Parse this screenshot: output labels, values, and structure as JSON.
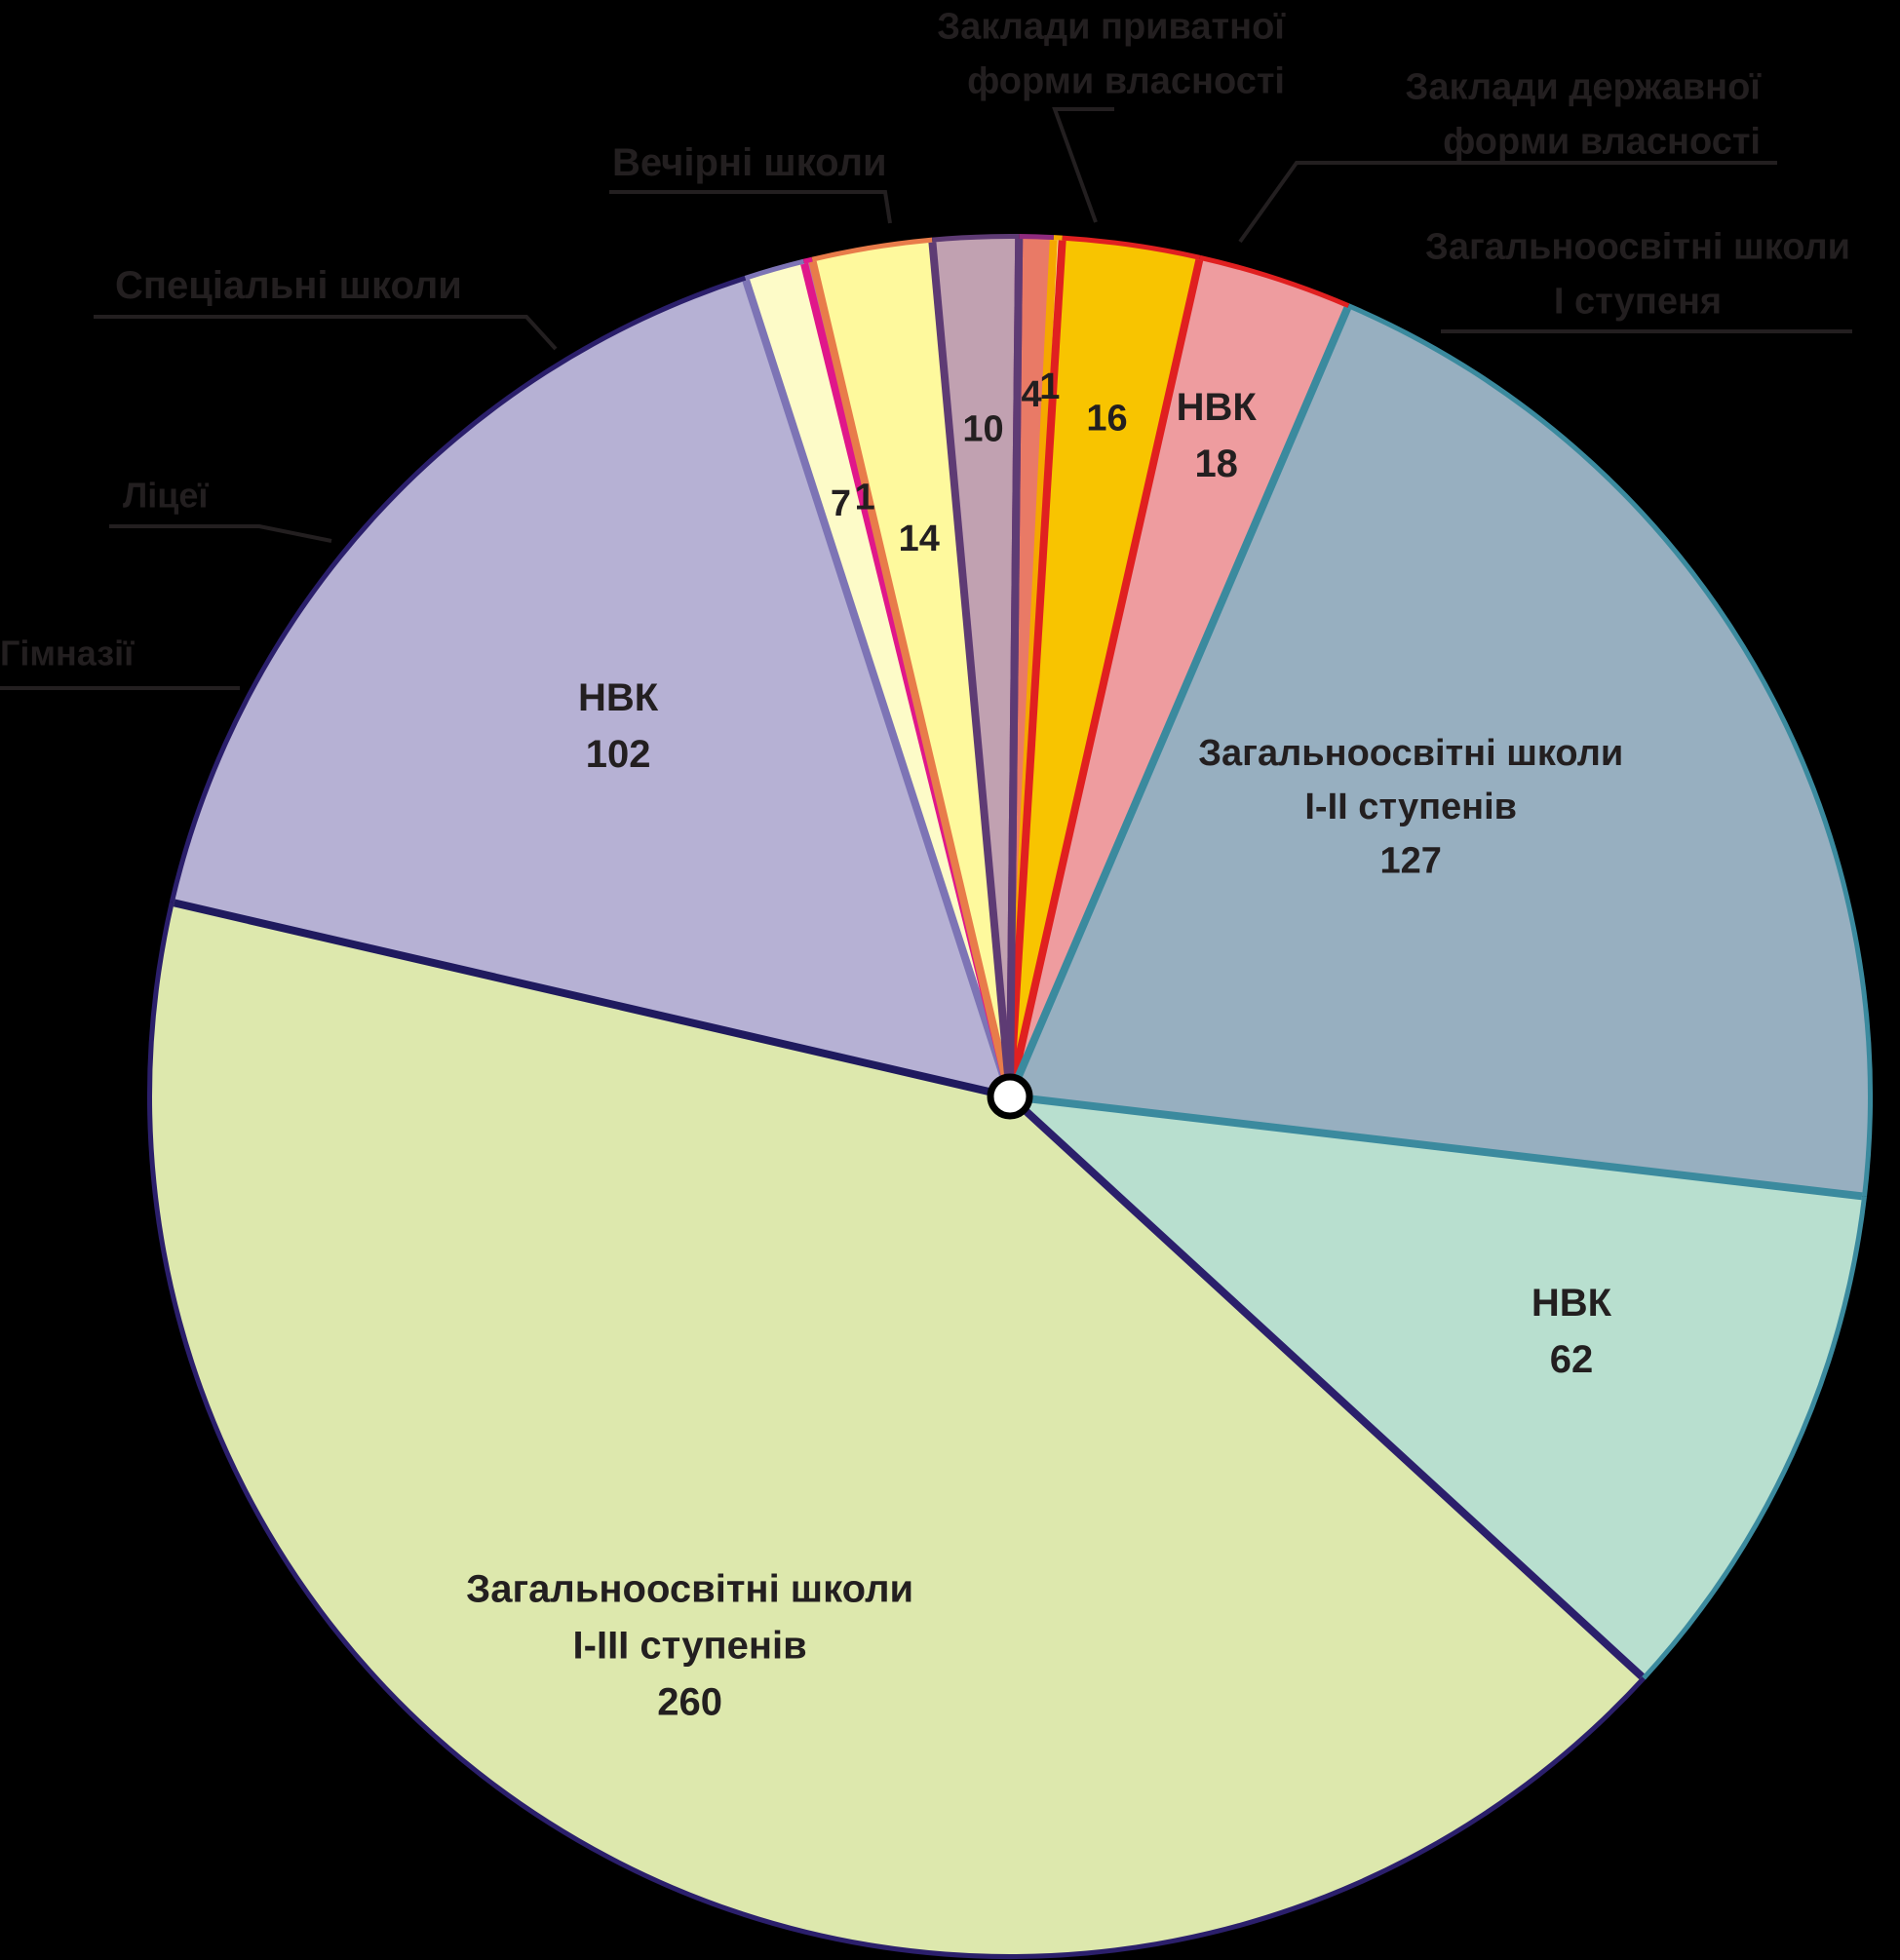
{
  "chart_data": {
    "type": "pie",
    "title": "",
    "slices": [
      {
        "label_lines": [
          "Загальноосвітні школи",
          "I-III ступенів"
        ],
        "value": 260,
        "color": "#dde8ad"
      },
      {
        "label_lines": [
          "НВК"
        ],
        "value": 102,
        "color": "#b6b1d4"
      },
      {
        "label_lines": [],
        "value": 7,
        "color": "#fdfbc8",
        "callout": "Гімназії"
      },
      {
        "label_lines": [],
        "value": 1,
        "color": "#b873a8",
        "callout": "Ліцеї"
      },
      {
        "label_lines": [],
        "value": 14,
        "color": "#fef99d",
        "callout": "Спеціальні школи"
      },
      {
        "label_lines": [],
        "value": 10,
        "color": "#c1a1b1",
        "callout": "Вечірні школи"
      },
      {
        "label_lines": [],
        "value": 4,
        "color": "#e97a66",
        "callout": "Заклади приватної форми власності"
      },
      {
        "label_lines": [],
        "value": 1,
        "color": "#fdf8a3",
        "callout": "Заклади державної форми власності"
      },
      {
        "label_lines": [],
        "value": 16,
        "color": "#f8c400",
        "callout": "Загальноосвітні школи I ступеня"
      },
      {
        "label_lines": [
          "НВК"
        ],
        "value": 18,
        "color": "#ee9c9f"
      },
      {
        "label_lines": [
          "Загальноосвітні школи",
          "I-II ступенів"
        ],
        "value": 127,
        "color": "#97afc0"
      },
      {
        "label_lines": [
          "НВК"
        ],
        "value": 62,
        "color": "#b8dfcf"
      }
    ],
    "callouts": [
      {
        "lines": [
          "Гімназії"
        ]
      },
      {
        "lines": [
          "Ліцеї"
        ]
      },
      {
        "lines": [
          "Спеціальні школи"
        ]
      },
      {
        "lines": [
          "Вечірні школи"
        ]
      },
      {
        "lines": [
          "Заклади приватної",
          "форми власності"
        ]
      },
      {
        "lines": [
          "Заклади державної",
          "форми власності"
        ]
      },
      {
        "lines": [
          "Загальноосвітні школи",
          "I ступеня"
        ]
      }
    ]
  }
}
